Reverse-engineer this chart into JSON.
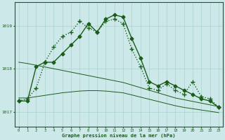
{
  "title": "Graphe pression niveau de la mer (hPa)",
  "bg_color": "#cce8e8",
  "grid_color": "#aad0d0",
  "line_color": "#1a5c1a",
  "x_ticks": [
    0,
    1,
    2,
    3,
    4,
    5,
    6,
    7,
    8,
    9,
    10,
    11,
    12,
    13,
    14,
    15,
    16,
    17,
    18,
    19,
    20,
    21,
    22,
    23
  ],
  "y_ticks": [
    1017,
    1018,
    1019
  ],
  "ylim": [
    1016.65,
    1019.55
  ],
  "xlim": [
    -0.5,
    23.5
  ],
  "series": [
    {
      "x": [
        0,
        1,
        2,
        3,
        4,
        5,
        6,
        7,
        8,
        9,
        10,
        11,
        12,
        13,
        14,
        15,
        16,
        17,
        18,
        19,
        20,
        21,
        22,
        23
      ],
      "y": [
        1017.25,
        1017.25,
        1018.05,
        1018.15,
        1018.15,
        1018.35,
        1018.55,
        1018.75,
        1019.05,
        1018.85,
        1019.15,
        1019.25,
        1019.2,
        1018.7,
        1018.25,
        1017.7,
        1017.6,
        1017.7,
        1017.6,
        1017.5,
        1017.4,
        1017.3,
        1017.25,
        1017.1
      ],
      "style": "-",
      "marker": "D",
      "markersize": 2.5,
      "linewidth": 1.0
    },
    {
      "x": [
        0,
        1,
        2,
        3,
        4,
        5,
        6,
        7,
        8,
        9,
        10,
        11,
        12,
        13,
        14,
        15,
        16,
        17,
        18,
        19,
        20,
        21,
        22,
        23
      ],
      "y": [
        1017.25,
        1017.3,
        1017.55,
        1018.15,
        1018.5,
        1018.75,
        1018.85,
        1019.1,
        1018.95,
        1018.85,
        1019.1,
        1019.15,
        1019.05,
        1018.45,
        1018.05,
        1017.55,
        1017.5,
        1017.65,
        1017.5,
        1017.4,
        1017.7,
        1017.35,
        1017.3,
        1017.1
      ],
      "style": ":",
      "marker": "+",
      "markersize": 4,
      "linewidth": 1.0
    },
    {
      "x": [
        0,
        1,
        2,
        3,
        4,
        5,
        6,
        7,
        8,
        9,
        10,
        11,
        12,
        13,
        14,
        15,
        16,
        17,
        18,
        19,
        20,
        21,
        22,
        23
      ],
      "y": [
        1018.15,
        1018.12,
        1018.08,
        1018.04,
        1018.0,
        1017.96,
        1017.92,
        1017.88,
        1017.84,
        1017.8,
        1017.76,
        1017.72,
        1017.68,
        1017.62,
        1017.56,
        1017.5,
        1017.44,
        1017.38,
        1017.32,
        1017.28,
        1017.24,
        1017.2,
        1017.16,
        1017.12
      ],
      "style": "-",
      "marker": null,
      "markersize": 0,
      "linewidth": 0.7
    },
    {
      "x": [
        0,
        1,
        2,
        3,
        4,
        5,
        6,
        7,
        8,
        9,
        10,
        11,
        12,
        13,
        14,
        15,
        16,
        17,
        18,
        19,
        20,
        21,
        22,
        23
      ],
      "y": [
        1017.32,
        1017.32,
        1017.35,
        1017.38,
        1017.41,
        1017.44,
        1017.46,
        1017.48,
        1017.49,
        1017.49,
        1017.48,
        1017.46,
        1017.44,
        1017.39,
        1017.34,
        1017.29,
        1017.24,
        1017.19,
        1017.14,
        1017.1,
        1017.07,
        1017.04,
        1017.01,
        1016.98
      ],
      "style": "-",
      "marker": null,
      "markersize": 0,
      "linewidth": 0.7
    }
  ]
}
